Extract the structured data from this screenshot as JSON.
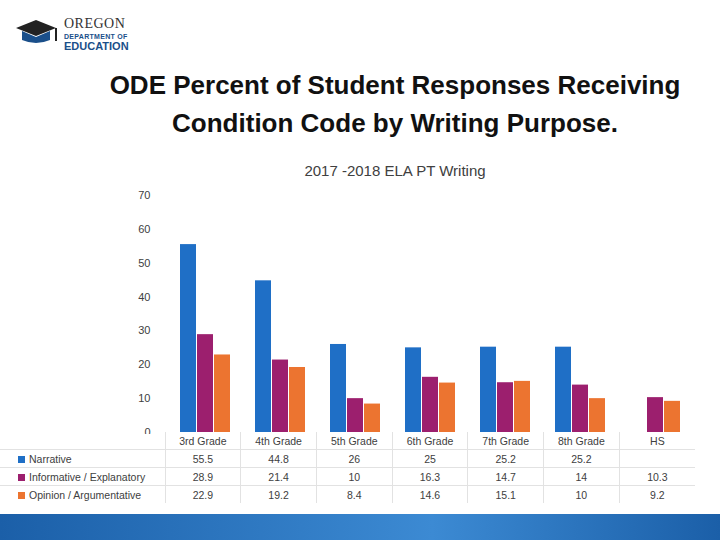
{
  "chart_data": {
    "type": "bar",
    "title": "ODE Percent of Student Responses Receiving Condition Code by Writing Purpose.",
    "subtitle": "2017 -2018 ELA PT Writing",
    "annotations": [
      "OREGON",
      "DEPARTMENT OF",
      "EDUCATION"
    ],
    "categories": [
      "3rd Grade",
      "4th Grade",
      "5th Grade",
      "6th Grade",
      "7th Grade",
      "8th Grade",
      "HS"
    ],
    "series": [
      {
        "name": "Narrative",
        "color": "#1f6fc6",
        "values": [
          55.5,
          44.8,
          26,
          25,
          25.2,
          25.2,
          null
        ]
      },
      {
        "name": "Informative / Explanatory",
        "color": "#9c1f6e",
        "values": [
          28.9,
          21.4,
          10,
          16.3,
          14.7,
          14,
          10.3
        ]
      },
      {
        "name": "Opinion / Argumentative",
        "color": "#ec7430",
        "values": [
          22.9,
          19.2,
          8.4,
          14.6,
          15.1,
          10,
          9.2
        ]
      }
    ],
    "ylim": [
      0,
      70
    ],
    "yticks": [
      0,
      10,
      20,
      30,
      40,
      50,
      60,
      70
    ],
    "grid": false,
    "legend": "bottom-left"
  }
}
